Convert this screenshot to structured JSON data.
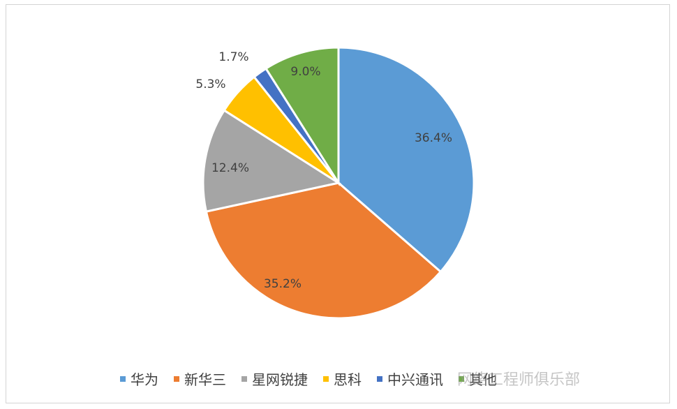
{
  "chart_data": {
    "type": "pie",
    "categories": [
      "华为",
      "新华三",
      "星网锐捷",
      "思科",
      "中兴通讯",
      "其他"
    ],
    "values": [
      36.4,
      35.2,
      12.4,
      5.3,
      1.7,
      9.0
    ],
    "data_labels": [
      "36.4%",
      "35.2%",
      "12.4%",
      "5.3%",
      "1.7%",
      "9.0%"
    ],
    "colors": [
      "#5b9bd5",
      "#ed7d31",
      "#a5a5a5",
      "#ffc000",
      "#4472c4",
      "#70ad47"
    ],
    "legend_position": "bottom",
    "start_angle": "12-o'clock",
    "direction": "clockwise"
  },
  "watermark": "网络工程师俱乐部"
}
